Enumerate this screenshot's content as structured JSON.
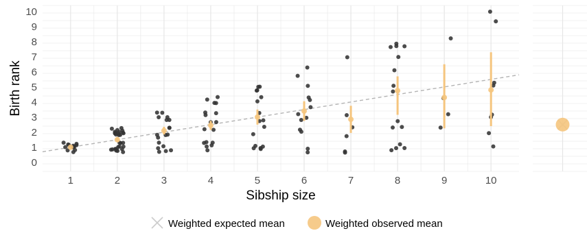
{
  "chart_data": {
    "type": "scatter",
    "xlabel": "Sibship size",
    "ylabel": "Birth rank",
    "x_ticks": [
      1,
      2,
      3,
      4,
      5,
      6,
      7,
      8,
      9,
      10
    ],
    "y_ticks": [
      0,
      1,
      2,
      3,
      4,
      5,
      6,
      7,
      8,
      9,
      10
    ],
    "xlim": [
      0.4,
      10.6
    ],
    "ylim": [
      -0.6,
      10.4
    ],
    "grid": true,
    "legend_position": "bottom",
    "colors": {
      "points": "#333333",
      "observed_mean": "#f5c57e",
      "expected_line": "#b3b3b3",
      "grid": "#e6e6e6",
      "expected_marker": "#cccccc"
    },
    "legend": [
      {
        "label": "Weighted expected mean",
        "marker": "cross"
      },
      {
        "label": "Weighted observed mean",
        "marker": "circle"
      }
    ],
    "points": [
      {
        "x": 1,
        "y": [
          1,
          1,
          1,
          1,
          1,
          1,
          1,
          1,
          1,
          1,
          1,
          1,
          1
        ]
      },
      {
        "x": 2,
        "y": [
          1,
          1,
          1,
          1,
          1,
          1,
          1,
          1,
          1,
          1,
          1,
          1,
          1,
          1,
          1,
          2,
          2,
          2,
          2,
          2,
          2,
          2,
          2,
          2,
          2,
          2,
          2,
          2,
          2
        ]
      },
      {
        "x": 3,
        "y": [
          1,
          1,
          1,
          1,
          1,
          1,
          2,
          2,
          2,
          2,
          2,
          2,
          3,
          3,
          3,
          3,
          3,
          3
        ]
      },
      {
        "x": 4,
        "y": [
          1,
          1,
          1,
          1,
          1,
          1,
          2,
          2,
          3,
          3,
          3,
          3,
          3,
          4,
          4,
          4,
          4
        ]
      },
      {
        "x": 5,
        "y": [
          1,
          1,
          1,
          1,
          1,
          2,
          2,
          3,
          3,
          3,
          4,
          4,
          5,
          5,
          5,
          5
        ]
      },
      {
        "x": 6,
        "y": [
          1,
          1,
          2,
          2,
          3,
          3,
          3,
          4,
          4,
          4,
          5,
          6,
          6
        ]
      },
      {
        "x": 7,
        "y": [
          1,
          1,
          2,
          2,
          3,
          7
        ]
      },
      {
        "x": 8,
        "y": [
          1,
          1,
          1,
          1,
          2,
          2,
          3,
          5,
          5,
          6,
          7,
          8,
          8,
          8,
          8
        ]
      },
      {
        "x": 9,
        "y": [
          2,
          3,
          4,
          8
        ]
      },
      {
        "x": 10,
        "y": [
          1,
          2,
          3,
          3,
          5,
          5,
          9,
          10
        ]
      }
    ],
    "observed_mean": [
      {
        "x": 1,
        "mean": 1.0,
        "low": 0.93,
        "high": 1.07
      },
      {
        "x": 2,
        "mean": 1.5,
        "low": 1.35,
        "high": 1.65
      },
      {
        "x": 3,
        "mean": 2.1,
        "low": 1.85,
        "high": 2.35
      },
      {
        "x": 4,
        "mean": 2.45,
        "low": 2.15,
        "high": 2.75
      },
      {
        "x": 5,
        "mean": 3.0,
        "low": 2.5,
        "high": 3.5
      },
      {
        "x": 6,
        "mean": 3.4,
        "low": 2.75,
        "high": 4.05
      },
      {
        "x": 7,
        "mean": 2.85,
        "low": 1.95,
        "high": 3.75
      },
      {
        "x": 8,
        "mean": 4.75,
        "low": 3.15,
        "high": 5.7
      },
      {
        "x": 9,
        "mean": 4.3,
        "low": 2.25,
        "high": 6.5
      },
      {
        "x": 10,
        "mean": 4.8,
        "low": 2.4,
        "high": 7.3
      }
    ],
    "expected_line": {
      "intercept": 0.5,
      "slope": 0.5
    },
    "side_panel": {
      "expected_mean": 2.5,
      "observed_mean": 2.5
    }
  }
}
